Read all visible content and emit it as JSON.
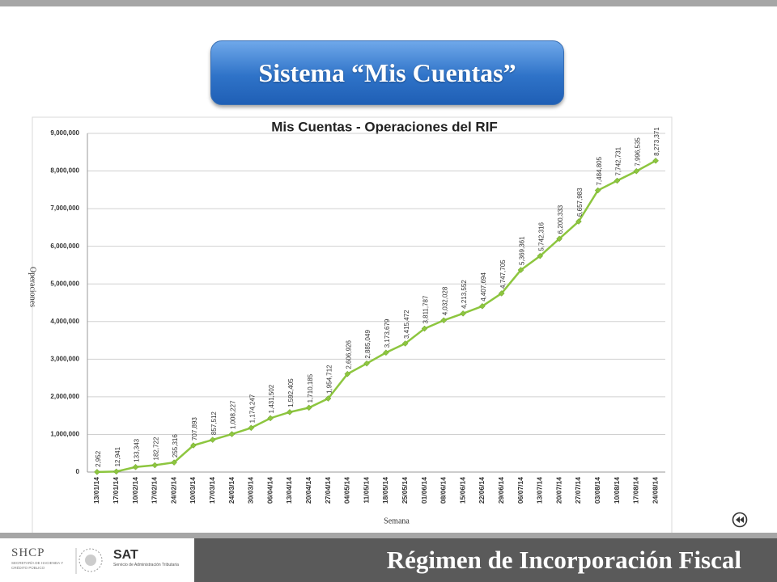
{
  "header": {
    "title": "Sistema “Mis Cuentas”"
  },
  "chart_data": {
    "type": "line",
    "title": "Mis Cuentas - Operaciones del RIF",
    "ylabel": "Operaciones",
    "xlabel": "Semana",
    "categories": [
      "13/01/14",
      "17/01/14",
      "10/02/14",
      "17/02/14",
      "24/02/14",
      "10/03/14",
      "17/03/14",
      "24/03/14",
      "30/03/14",
      "06/04/14",
      "13/04/14",
      "20/04/14",
      "27/04/14",
      "04/05/14",
      "11/05/14",
      "18/05/14",
      "25/05/14",
      "01/06/14",
      "08/06/14",
      "15/06/14",
      "22/06/14",
      "29/06/14",
      "06/07/14",
      "13/07/14",
      "20/07/14",
      "27/07/14",
      "03/08/14",
      "10/08/14",
      "17/08/14",
      "24/08/14"
    ],
    "values": [
      2952,
      12941,
      133343,
      182722,
      255316,
      707893,
      857512,
      1008227,
      1174247,
      1431502,
      1592405,
      1710185,
      1954712,
      2606926,
      2885049,
      3173679,
      3415472,
      3811787,
      4032028,
      4213552,
      4407694,
      4747705,
      5369361,
      5742316,
      6200333,
      6657983,
      7484805,
      7742731,
      7996535,
      8273371
    ],
    "value_labels": [
      "2,952",
      "12,941",
      "133,343",
      "182,722",
      "255,316",
      "707,893",
      "857,512",
      "1,008,227",
      "1,174,247",
      "1,431,502",
      "1,592,405",
      "1,710,185",
      "1,954,712",
      "2,606,926",
      "2,885,049",
      "3,173,679",
      "3,415,472",
      "3,811,787",
      "4,032,028",
      "4,213,552",
      "4,407,694",
      "4,747,705",
      "5,369,361",
      "5,742,316",
      "6,200,333",
      "6,657,983",
      "7,484,805",
      "7,742,731",
      "7,996,535",
      "8,273,371"
    ],
    "color": "#8dc63f",
    "ylim": [
      0,
      9000000
    ],
    "yticks": [
      0,
      {
        "value": 1000000,
        "label": "1,000,000"
      },
      {
        "value": 2000000,
        "label": "2,000,000"
      },
      {
        "value": 3000000,
        "label": "3,000,000"
      },
      {
        "value": 4000000,
        "label": "4,000,000"
      },
      {
        "value": 5000000,
        "label": "5,000,000"
      },
      {
        "value": 6000000,
        "label": "6,000,000"
      },
      {
        "value": 7000000,
        "label": "7,000,000"
      },
      {
        "value": 8000000,
        "label": "8,000,000"
      },
      {
        "value": 9000000,
        "label": "9,000,000"
      }
    ],
    "grid": true
  },
  "footer": {
    "shcp": "SHCP",
    "shcp_name": "SECRETARÍA DE HACIENDA Y CRÉDITO PÚBLICO",
    "sat": "SAT",
    "sat_name": "Servicio de Administración Tributaria",
    "title": "Régimen de Incorporación Fiscal"
  }
}
